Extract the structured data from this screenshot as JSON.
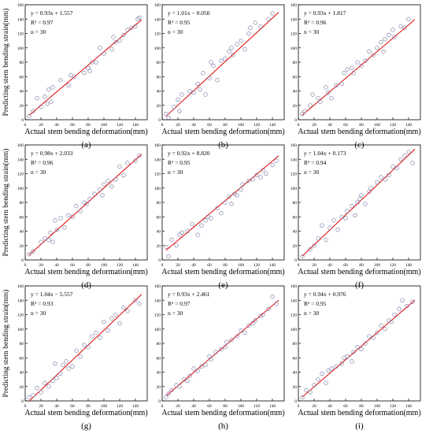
{
  "figure": {
    "ylabel": "Predicting stem bending strain(mm)",
    "xlabel": "Actual stem bending deformation(mm)",
    "xticks": [
      0,
      20,
      40,
      60,
      80,
      100,
      120,
      140
    ],
    "yticks": [
      0,
      20,
      40,
      60,
      80,
      100,
      120,
      140,
      160
    ],
    "colors": {
      "points": "#8080a8",
      "fit": "#e00000",
      "frame": "#000000"
    }
  },
  "chart_data": [
    {
      "type": "scatter",
      "panel": "(a)",
      "equation": "y = 0.93x + 1.557",
      "r2": "R² = 0.97",
      "n": "n = 30",
      "slope": 0.93,
      "intercept": 1.557,
      "xlim": [
        0,
        155
      ],
      "ylim": [
        0,
        160
      ],
      "x": [
        5,
        10,
        15,
        20,
        25,
        28,
        30,
        33,
        35,
        45,
        55,
        58,
        62,
        75,
        80,
        82,
        85,
        90,
        95,
        100,
        110,
        112,
        115,
        120,
        125,
        130,
        135,
        140,
        143,
        145
      ],
      "y": [
        5,
        12,
        30,
        18,
        32,
        22,
        42,
        25,
        45,
        55,
        48,
        62,
        60,
        65,
        72,
        68,
        80,
        80,
        100,
        92,
        98,
        115,
        108,
        110,
        118,
        125,
        128,
        130,
        140,
        142
      ]
    },
    {
      "type": "scatter",
      "panel": "(b)",
      "equation": "y = 1.01x − 0.050",
      "r2": "R² = 0.95",
      "n": "n = 30",
      "slope": 1.01,
      "intercept": -0.05,
      "xlim": [
        0,
        155
      ],
      "ylim": [
        0,
        160
      ],
      "x": [
        5,
        8,
        15,
        20,
        22,
        25,
        35,
        40,
        45,
        48,
        52,
        55,
        60,
        62,
        65,
        70,
        75,
        80,
        85,
        88,
        90,
        95,
        100,
        105,
        110,
        112,
        118,
        125,
        135,
        140
      ],
      "y": [
        8,
        3,
        18,
        28,
        12,
        35,
        40,
        38,
        50,
        42,
        65,
        35,
        58,
        80,
        75,
        55,
        82,
        85,
        95,
        100,
        90,
        105,
        110,
        98,
        120,
        128,
        135,
        130,
        140,
        148
      ]
    },
    {
      "type": "scatter",
      "panel": "(c)",
      "equation": "y = 0.93x + 1.817",
      "r2": "R² = 0.96",
      "n": "n = 30",
      "slope": 0.93,
      "intercept": 1.817,
      "xlim": [
        0,
        155
      ],
      "ylim": [
        0,
        160
      ],
      "x": [
        5,
        8,
        15,
        18,
        25,
        28,
        35,
        38,
        42,
        48,
        55,
        58,
        62,
        68,
        70,
        75,
        80,
        85,
        90,
        95,
        100,
        105,
        108,
        110,
        115,
        120,
        122,
        130,
        135,
        140
      ],
      "y": [
        8,
        12,
        20,
        35,
        30,
        25,
        45,
        38,
        30,
        48,
        50,
        65,
        70,
        72,
        65,
        80,
        75,
        82,
        95,
        90,
        100,
        108,
        95,
        112,
        118,
        125,
        115,
        130,
        128,
        140
      ]
    },
    {
      "type": "scatter",
      "panel": "(d)",
      "equation": "y = 0.98x + 2.033",
      "r2": "R² = 0.96",
      "n": "n = 30",
      "slope": 0.98,
      "intercept": 2.033,
      "xlim": [
        0,
        155
      ],
      "ylim": [
        0,
        160
      ],
      "x": [
        5,
        10,
        20,
        25,
        30,
        32,
        35,
        38,
        40,
        45,
        50,
        55,
        60,
        65,
        70,
        75,
        78,
        82,
        88,
        95,
        98,
        100,
        105,
        110,
        115,
        120,
        125,
        130,
        140,
        145
      ],
      "y": [
        8,
        12,
        25,
        30,
        28,
        38,
        25,
        55,
        42,
        58,
        45,
        62,
        60,
        75,
        68,
        80,
        78,
        85,
        92,
        98,
        90,
        105,
        110,
        102,
        112,
        130,
        118,
        135,
        138,
        145
      ]
    },
    {
      "type": "scatter",
      "panel": "(e)",
      "equation": "y = 0.92x + 8.820",
      "r2": "R² = 0.95",
      "n": "n = 30",
      "slope": 0.92,
      "intercept": 8.82,
      "xlim": [
        0,
        155
      ],
      "ylim": [
        0,
        160
      ],
      "x": [
        5,
        8,
        12,
        18,
        22,
        25,
        32,
        38,
        45,
        50,
        55,
        58,
        62,
        70,
        75,
        80,
        85,
        88,
        92,
        95,
        100,
        102,
        110,
        115,
        120,
        125,
        128,
        132,
        140,
        145
      ],
      "y": [
        18,
        5,
        28,
        20,
        35,
        38,
        40,
        50,
        35,
        48,
        55,
        60,
        58,
        72,
        65,
        80,
        88,
        78,
        92,
        90,
        98,
        105,
        110,
        112,
        118,
        115,
        125,
        120,
        132,
        138
      ]
    },
    {
      "type": "scatter",
      "panel": "(f)",
      "equation": "y = 1.04x + 0.173",
      "r2": "R² = 0.94",
      "n": "n = 30",
      "slope": 1.04,
      "intercept": 0.173,
      "xlim": [
        0,
        155
      ],
      "ylim": [
        0,
        160
      ],
      "x": [
        5,
        15,
        20,
        25,
        30,
        35,
        40,
        45,
        50,
        55,
        60,
        62,
        68,
        72,
        75,
        78,
        80,
        85,
        90,
        92,
        100,
        105,
        110,
        115,
        120,
        125,
        130,
        135,
        140,
        145
      ],
      "y": [
        5,
        15,
        20,
        30,
        48,
        28,
        45,
        55,
        42,
        60,
        58,
        68,
        75,
        62,
        80,
        85,
        90,
        78,
        95,
        100,
        108,
        115,
        112,
        118,
        130,
        128,
        140,
        145,
        150,
        135
      ]
    },
    {
      "type": "scatter",
      "panel": "(g)",
      "equation": "y = 1.04x − 5.557",
      "r2": "R² = 0.93",
      "n": "n = 30",
      "slope": 1.04,
      "intercept": -5.557,
      "xlim": [
        0,
        155
      ],
      "ylim": [
        0,
        160
      ],
      "x": [
        5,
        10,
        15,
        20,
        25,
        30,
        35,
        38,
        40,
        45,
        48,
        52,
        55,
        60,
        65,
        70,
        75,
        80,
        85,
        90,
        95,
        100,
        105,
        110,
        115,
        120,
        125,
        130,
        140,
        145
      ],
      "y": [
        5,
        8,
        18,
        12,
        25,
        20,
        28,
        52,
        32,
        38,
        50,
        55,
        45,
        48,
        70,
        62,
        78,
        75,
        90,
        95,
        88,
        110,
        98,
        115,
        120,
        108,
        130,
        125,
        140,
        135
      ]
    },
    {
      "type": "scatter",
      "panel": "(h)",
      "equation": "y = 0.93x + 2.461",
      "r2": "R² = 0.97",
      "n": "n = 30",
      "slope": 0.93,
      "intercept": 2.461,
      "xlim": [
        0,
        155
      ],
      "ylim": [
        0,
        160
      ],
      "x": [
        5,
        8,
        12,
        18,
        22,
        28,
        32,
        35,
        40,
        45,
        50,
        55,
        60,
        62,
        68,
        75,
        80,
        82,
        88,
        95,
        100,
        105,
        110,
        115,
        118,
        125,
        128,
        135,
        140,
        145
      ],
      "y": [
        5,
        10,
        15,
        22,
        20,
        30,
        28,
        35,
        45,
        42,
        48,
        50,
        62,
        58,
        68,
        72,
        75,
        82,
        85,
        90,
        98,
        95,
        105,
        108,
        112,
        118,
        120,
        128,
        145,
        135
      ]
    },
    {
      "type": "scatter",
      "panel": "(i)",
      "equation": "y = 0.94x + 0.976",
      "r2": "R² = 0.95",
      "n": "n = 30",
      "slope": 0.94,
      "intercept": 0.976,
      "xlim": [
        0,
        155
      ],
      "ylim": [
        0,
        160
      ],
      "x": [
        5,
        10,
        15,
        20,
        25,
        30,
        35,
        38,
        42,
        48,
        55,
        58,
        62,
        68,
        70,
        75,
        80,
        85,
        90,
        95,
        100,
        105,
        110,
        115,
        118,
        122,
        128,
        132,
        138,
        145
      ],
      "y": [
        5,
        15,
        12,
        22,
        30,
        38,
        25,
        42,
        45,
        48,
        52,
        60,
        62,
        55,
        68,
        75,
        72,
        80,
        90,
        88,
        95,
        105,
        100,
        112,
        110,
        120,
        128,
        140,
        132,
        138
      ]
    }
  ]
}
